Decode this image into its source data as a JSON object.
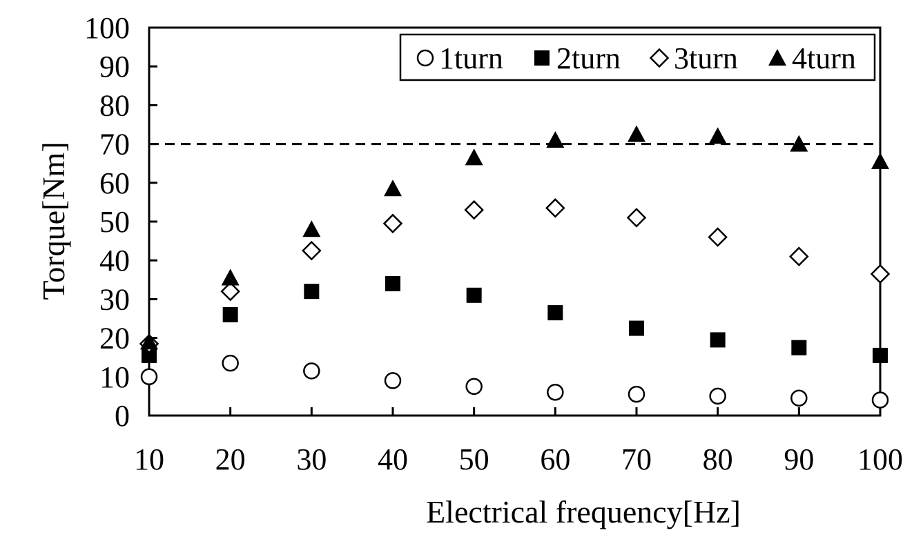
{
  "chart_data": {
    "type": "scatter",
    "title": "",
    "xlabel": "Electrical frequency[Hz]",
    "ylabel": "Torque[Nm]",
    "x": [
      10,
      20,
      30,
      40,
      50,
      60,
      70,
      80,
      90,
      100
    ],
    "xticks": [
      "10",
      "20",
      "30",
      "40",
      "50",
      "60",
      "70",
      "80",
      "90",
      "100"
    ],
    "yticks": [
      "0",
      "10",
      "20",
      "30",
      "40",
      "50",
      "60",
      "70",
      "80",
      "90",
      "100"
    ],
    "xlim": [
      10,
      100
    ],
    "ylim": [
      0,
      100
    ],
    "grid": false,
    "legend_position": "top-right",
    "reference_line": {
      "y": 70,
      "style": "dashed"
    },
    "series": [
      {
        "name": "1turn",
        "marker": "circle-open",
        "values": [
          10,
          13.5,
          11.5,
          9,
          7.5,
          6,
          5.5,
          5,
          4.5,
          4
        ]
      },
      {
        "name": "2turn",
        "marker": "square-filled",
        "values": [
          15.5,
          26,
          32,
          34,
          31,
          26.5,
          22.5,
          19.5,
          17.5,
          15.5
        ]
      },
      {
        "name": "3turn",
        "marker": "diamond-open",
        "values": [
          18.5,
          32,
          42.5,
          49.5,
          53,
          53.5,
          51,
          46,
          41,
          36.5
        ]
      },
      {
        "name": "4turn",
        "marker": "triangle-filled",
        "values": [
          19,
          35.5,
          48,
          58.5,
          66.5,
          71,
          72.5,
          72,
          70,
          65.5
        ]
      }
    ],
    "colors": {
      "marker": "#000000",
      "axis": "#000000",
      "background": "#ffffff"
    }
  }
}
